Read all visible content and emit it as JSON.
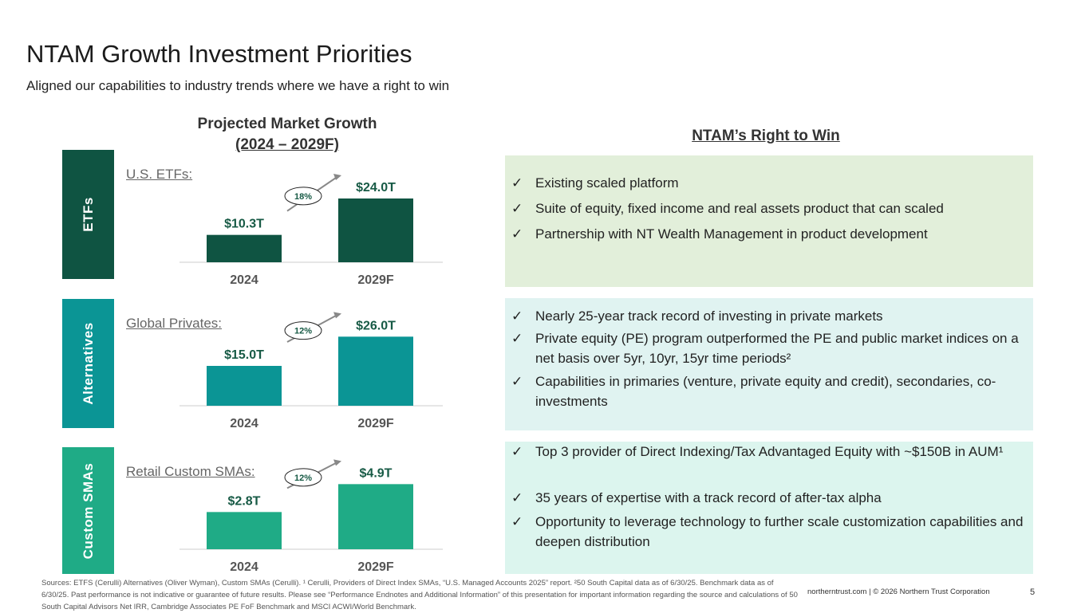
{
  "title": "NTAM Growth Investment Priorities",
  "subtitle": "Aligned our capabilities to industry trends where we have a right to win",
  "chart_heading": {
    "line1": "Projected Market Growth",
    "line2": "(2024 – 2029F)"
  },
  "rtw_heading": "NTAM’s Right to Win",
  "colors": {
    "etf": "#0f5442",
    "alt": "#0b9595",
    "sma": "#1fab86",
    "etf_panel": "#e2efda",
    "alt_panel": "#e0f3f1",
    "sma_panel": "#dcf5ee",
    "value_text": "#175a45"
  },
  "chart_data": [
    {
      "type": "bar",
      "segment": "ETFs",
      "title": "U.S. ETFs:",
      "categories": [
        "2024",
        "2029F"
      ],
      "values": [
        10.3,
        24.0
      ],
      "value_labels": [
        "$10.3T",
        "$24.0T"
      ],
      "growth_label": "18%",
      "ylim": [
        0,
        30
      ],
      "unit": "$T"
    },
    {
      "type": "bar",
      "segment": "Alternatives",
      "title": "Global Privates:",
      "categories": [
        "2024",
        "2029F"
      ],
      "values": [
        15.0,
        26.0
      ],
      "value_labels": [
        "$15.0T",
        "$26.0T"
      ],
      "growth_label": "12%",
      "ylim": [
        0,
        30
      ],
      "unit": "$T"
    },
    {
      "type": "bar",
      "segment": "Custom SMAs",
      "title": "Retail Custom SMAs:",
      "categories": [
        "2024",
        "2029F"
      ],
      "values": [
        2.8,
        4.9
      ],
      "value_labels": [
        "$2.8T",
        "$4.9T"
      ],
      "growth_label": "12%",
      "ylim": [
        0,
        6
      ],
      "unit": "$T"
    }
  ],
  "panels": [
    {
      "bullets": [
        "Existing scaled platform",
        "Suite of equity, fixed income and real assets product that can scaled",
        "Partnership with NT Wealth Management in product development"
      ]
    },
    {
      "bullets": [
        "Nearly 25-year track record of investing in private markets",
        "Private equity (PE) program outperformed the PE and public market indices on a net basis over 5yr, 10yr, 15yr time periods²",
        "Capabilities in primaries (venture, private equity and credit), secondaries, co-investments"
      ]
    },
    {
      "bullets": [
        "Top 3 provider of Direct Indexing/Tax Advantaged Equity with ~$150B in AUM¹",
        "35 years of expertise with a track record of after-tax alpha",
        "Opportunity to leverage technology to further scale customization capabilities and deepen distribution"
      ]
    }
  ],
  "check": "✓",
  "footnote": "Sources: ETFS (Cerulli) Alternatives (Oliver Wyman), Custom SMAs (Cerulli).  ¹ Cerulli, Providers of Direct Index SMAs, “U.S. Managed Accounts 2025” report.  ²50 South Capital data as of 6/30/25. Benchmark data as of 6/30/25. Past performance is not indicative or guarantee of future results. Please see “Performance Endnotes and Additional Information” of this presentation for important information regarding the source and calculations of 50 South Capital Advisors Net IRR, Cambridge Associates PE FoF Benchmark and MSCI ACWI/World Benchmark.",
  "footer_right": "northerntrust.com | © 2026 Northern Trust Corporation",
  "page_number": "5"
}
